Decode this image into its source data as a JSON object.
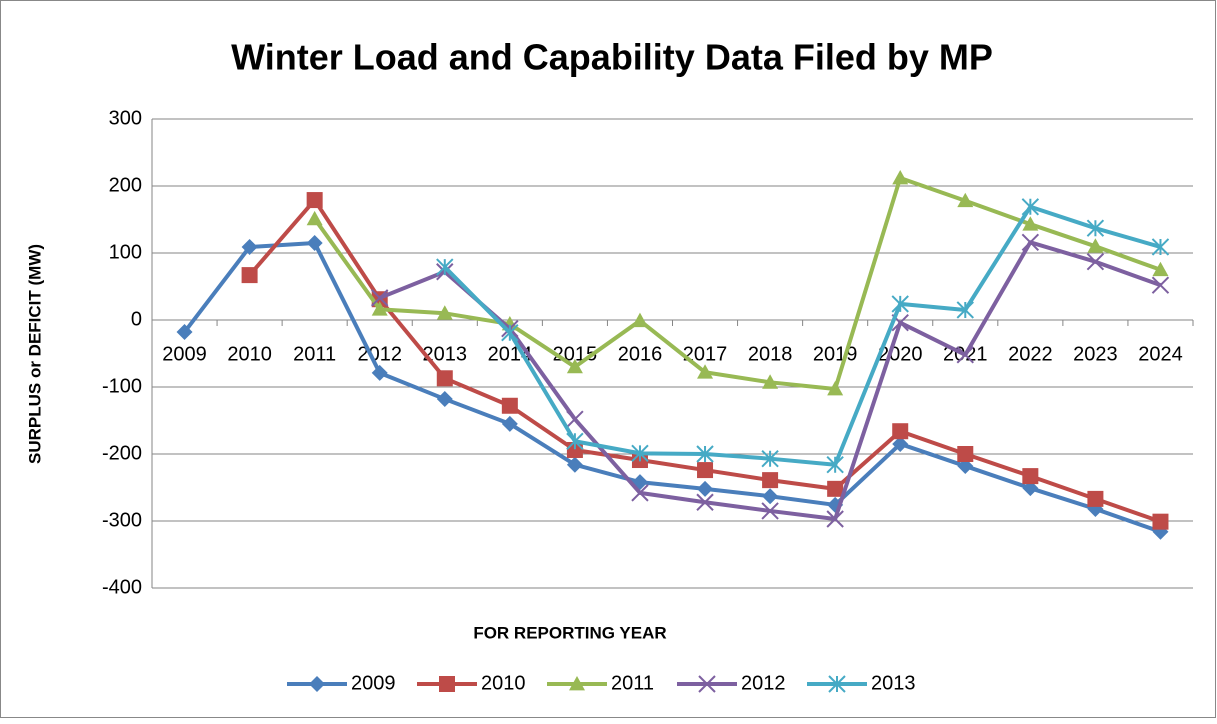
{
  "chart_data": {
    "type": "line",
    "title": "Winter Load and Capability Data Filed by MP",
    "x_label": "FOR REPORTING YEAR",
    "y_label": "SURPLUS or DEFICIT (MW)",
    "categories": [
      "2009",
      "2010",
      "2011",
      "2012",
      "2013",
      "2014",
      "2015",
      "2016",
      "2017",
      "2018",
      "2019",
      "2020",
      "2021",
      "2022",
      "2023",
      "2024"
    ],
    "series": [
      {
        "name": "2009",
        "color": "#4a7ebb",
        "marker": "diamond",
        "values": [
          -18,
          109,
          115,
          -79,
          -118,
          -155,
          -216,
          -242,
          -252,
          -263,
          -276,
          -185,
          -218,
          -251,
          -282,
          -316
        ]
      },
      {
        "name": "2010",
        "color": "#be4b48",
        "marker": "square",
        "values": [
          null,
          67,
          179,
          31,
          -87,
          -128,
          -194,
          -209,
          -224,
          -239,
          -252,
          -166,
          -200,
          -233,
          -267,
          -301
        ]
      },
      {
        "name": "2011",
        "color": "#98b954",
        "marker": "triangle",
        "values": [
          null,
          null,
          151,
          16,
          10,
          -6,
          -70,
          -1,
          -78,
          -93,
          -103,
          212,
          178,
          143,
          110,
          75
        ]
      },
      {
        "name": "2012",
        "color": "#7d60a0",
        "marker": "x",
        "values": [
          null,
          null,
          null,
          33,
          72,
          -13,
          -148,
          -258,
          -272,
          -285,
          -297,
          -4,
          -52,
          116,
          87,
          52
        ]
      },
      {
        "name": "2013",
        "color": "#46aac5",
        "marker": "star",
        "values": [
          null,
          null,
          null,
          null,
          79,
          -19,
          -181,
          -199,
          -200,
          -207,
          -216,
          24,
          15,
          169,
          137,
          109
        ]
      }
    ],
    "ylim": [
      -400,
      300
    ],
    "yticks": [
      -400,
      -300,
      -200,
      -100,
      0,
      100,
      200,
      300
    ],
    "grid": true,
    "legend": "bottom"
  }
}
